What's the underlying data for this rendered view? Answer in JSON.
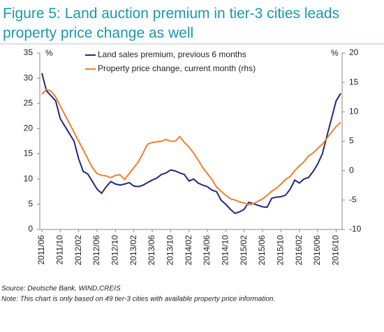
{
  "chart_data": {
    "type": "line",
    "title_lines": [
      "Figure 5: Land auction premium in tier-3 cities leads",
      "property price change as well"
    ],
    "y_unit": "%",
    "y2_unit": "%",
    "categories": [
      "2011/06",
      null,
      null,
      null,
      "2011/10",
      null,
      null,
      null,
      "2012/02",
      null,
      null,
      null,
      "2012/06",
      null,
      null,
      null,
      "2012/10",
      null,
      null,
      null,
      "2013/02",
      null,
      null,
      null,
      "2013/06",
      null,
      null,
      null,
      "2013/10",
      null,
      null,
      null,
      "2014/02",
      null,
      null,
      null,
      "2014/06",
      null,
      null,
      null,
      "2014/10",
      null,
      null,
      null,
      "2015/02",
      null,
      null,
      null,
      "2015/06",
      null,
      null,
      null,
      "2015/10",
      null,
      null,
      null,
      "2016/02",
      null,
      null,
      null,
      "2016/06",
      null,
      null,
      null,
      "2016/10",
      null
    ],
    "series": [
      {
        "name": "Land sales premium, previous 6 months",
        "color": "#1f2a78",
        "values": [
          31,
          27.5,
          26.5,
          25.5,
          22,
          20.5,
          19,
          17.5,
          14,
          11.5,
          11,
          9.5,
          8,
          7.2,
          8.5,
          9.5,
          9,
          8.8,
          9,
          9.3,
          8.6,
          8.5,
          8.8,
          9.3,
          9.8,
          10.2,
          10.9,
          11.2,
          11.8,
          11.6,
          11.2,
          10.9,
          9.6,
          10,
          9.2,
          8.8,
          8.5,
          7.8,
          7.5,
          5.8,
          5,
          4,
          3.2,
          3.5,
          4,
          5.4,
          5.1,
          4.8,
          4.5,
          4.4,
          6.2,
          6.4,
          6.5,
          6.8,
          8,
          9.8,
          9.2,
          10,
          10.3,
          11.5,
          13,
          15,
          18.5,
          22,
          25.5,
          27
        ]
      },
      {
        "name": "Property price change, current month (rhs)",
        "color": "#f07f2a",
        "axis": "y2",
        "values": [
          13,
          13.8,
          13.5,
          12.5,
          11,
          9.5,
          8,
          6.5,
          5,
          3.5,
          2,
          0.5,
          -0.5,
          -0.8,
          -0.9,
          -1.2,
          -0.8,
          -0.7,
          -1.5,
          -0.5,
          0.5,
          1.5,
          3,
          4.5,
          4.8,
          4.9,
          5,
          5.3,
          5,
          5,
          5.8,
          4.8,
          4,
          3,
          1.8,
          0.5,
          -0.5,
          -1.5,
          -2.8,
          -3.5,
          -4.2,
          -4.8,
          -5,
          -5.3,
          -5.5,
          -5.8,
          -5.6,
          -5.2,
          -4.8,
          -4.2,
          -3.5,
          -3,
          -2.3,
          -1.5,
          -1,
          0,
          0.8,
          1.5,
          2.5,
          3,
          3.8,
          4.5,
          5.5,
          6.5,
          7.5,
          8.2
        ]
      }
    ],
    "ylim": [
      0,
      35
    ],
    "yticks": [
      0,
      5,
      10,
      15,
      20,
      25,
      30,
      35
    ],
    "y2lim": [
      -10,
      20
    ],
    "y2ticks": [
      -10,
      -5,
      0,
      5,
      10,
      15,
      20
    ],
    "source": "Source: Deutsche Bank, WIND,CREIS",
    "note": "Note: This chart is only based on 49 tier-3 cities with available property price information."
  }
}
